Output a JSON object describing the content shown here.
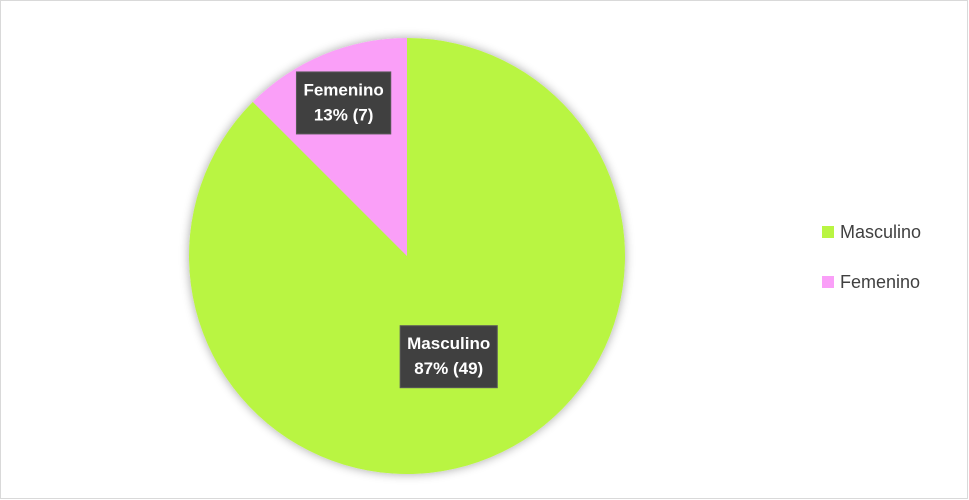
{
  "chart_data": {
    "type": "pie",
    "categories": [
      "Masculino",
      "Femenino"
    ],
    "values": [
      49,
      7
    ],
    "value_labels": [
      "87% (49)",
      "13% (7)"
    ],
    "colors": [
      "#b9f542",
      "#fa9ff8"
    ],
    "legend": "right"
  }
}
